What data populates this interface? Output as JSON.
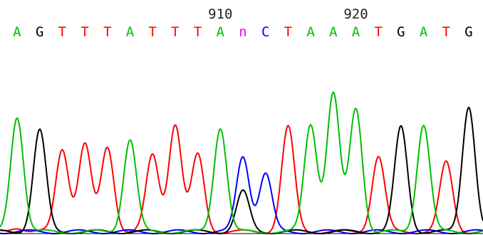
{
  "chart_data": {
    "type": "line",
    "position_labels": [
      {
        "label": "910",
        "base_index": 9
      },
      {
        "label": "920",
        "base_index": 15
      }
    ],
    "bases": [
      "A",
      "G",
      "T",
      "T",
      "T",
      "A",
      "T",
      "T",
      "T",
      "A",
      "n",
      "C",
      "T",
      "A",
      "A",
      "A",
      "T",
      "G",
      "A",
      "T",
      "G"
    ],
    "base_colors": {
      "A": "#00c000",
      "C": "#0000ff",
      "G": "#000000",
      "T": "#ff0000",
      "n": "#ff00ff"
    },
    "peaks": [
      {
        "index": 0,
        "channel": "A",
        "height": 0.75,
        "small": [
          {
            "channel": "T",
            "height": 0.03
          }
        ]
      },
      {
        "index": 1,
        "channel": "G",
        "height": 0.66
      },
      {
        "index": 2,
        "channel": "T",
        "height": 0.54
      },
      {
        "index": 3,
        "channel": "T",
        "height": 0.57
      },
      {
        "index": 4,
        "channel": "T",
        "height": 0.55
      },
      {
        "index": 5,
        "channel": "A",
        "height": 0.6
      },
      {
        "index": 6,
        "channel": "T",
        "height": 0.5
      },
      {
        "index": 7,
        "channel": "T",
        "height": 0.7
      },
      {
        "index": 8,
        "channel": "T",
        "height": 0.5
      },
      {
        "index": 9,
        "channel": "A",
        "height": 0.68
      },
      {
        "index": 10,
        "channel": "C",
        "height": 0.49,
        "small": [
          {
            "channel": "G",
            "height": 0.26
          }
        ]
      },
      {
        "index": 11,
        "channel": "C",
        "height": 0.38
      },
      {
        "index": 12,
        "channel": "T",
        "height": 0.68
      },
      {
        "index": 13,
        "channel": "A",
        "height": 0.7
      },
      {
        "index": 14,
        "channel": "A",
        "height": 0.9
      },
      {
        "index": 15,
        "channel": "A",
        "height": 0.8
      },
      {
        "index": 16,
        "channel": "T",
        "height": 0.49
      },
      {
        "index": 17,
        "channel": "G",
        "height": 0.68
      },
      {
        "index": 18,
        "channel": "A",
        "height": 0.7
      },
      {
        "index": 19,
        "channel": "T",
        "height": 0.45
      },
      {
        "index": 20,
        "channel": "G",
        "height": 0.82
      }
    ]
  }
}
